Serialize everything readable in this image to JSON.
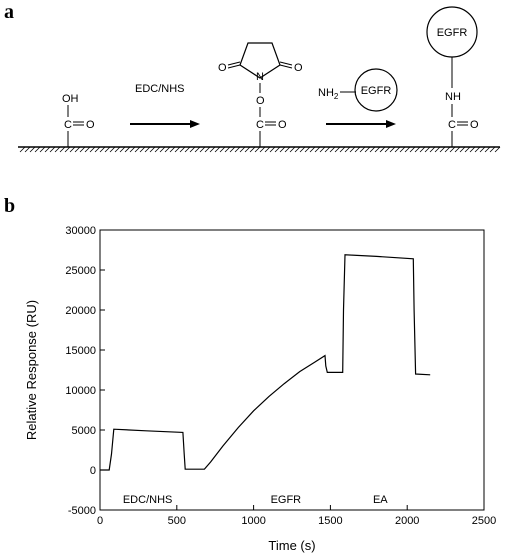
{
  "figure": {
    "panel_a": {
      "label": "a",
      "step1_reagent": "EDC/NHS",
      "carboxyl": {
        "oh": "OH",
        "c": "C",
        "o": "O"
      },
      "nhs_ester": {
        "o_left": "O",
        "n": "N",
        "o_right": "O",
        "o_link": "O",
        "c": "C",
        "o": "O"
      },
      "reactant": {
        "amine": "NH",
        "sub": "2",
        "protein": "EGFR"
      },
      "product": {
        "protein": "EGFR",
        "nh": "NH",
        "c": "C",
        "o": "O"
      }
    },
    "panel_b": {
      "label": "b"
    }
  },
  "chart_data": {
    "type": "line",
    "xlabel": "Time (s)",
    "ylabel": "Relative Response (RU)",
    "xlim": [
      0,
      2500
    ],
    "ylim": [
      -5000,
      30000
    ],
    "xticks": [
      0,
      500,
      1000,
      1500,
      2000,
      2500
    ],
    "yticks": [
      -5000,
      0,
      5000,
      10000,
      15000,
      20000,
      25000,
      30000
    ],
    "grid": false,
    "annotations": [
      {
        "text": "EDC/NHS",
        "x": 310,
        "y": -3600
      },
      {
        "text": "EGFR",
        "x": 1210,
        "y": -3600
      },
      {
        "text": "EA",
        "x": 1825,
        "y": -3600
      }
    ],
    "series": [
      {
        "x": [
          0,
          60,
          75,
          90,
          300,
          540,
          548,
          555,
          680,
          720,
          800,
          900,
          1000,
          1100,
          1200,
          1300,
          1400,
          1465,
          1470,
          1480,
          1580,
          1585,
          1595,
          1800,
          2040,
          2045,
          2055,
          2150
        ],
        "y": [
          0,
          0,
          2000,
          5100,
          4900,
          4700,
          2000,
          100,
          100,
          1000,
          3000,
          5300,
          7400,
          9200,
          10800,
          12300,
          13500,
          14300,
          13000,
          12200,
          12200,
          20000,
          26900,
          26700,
          26400,
          20000,
          12000,
          11900
        ]
      }
    ]
  }
}
